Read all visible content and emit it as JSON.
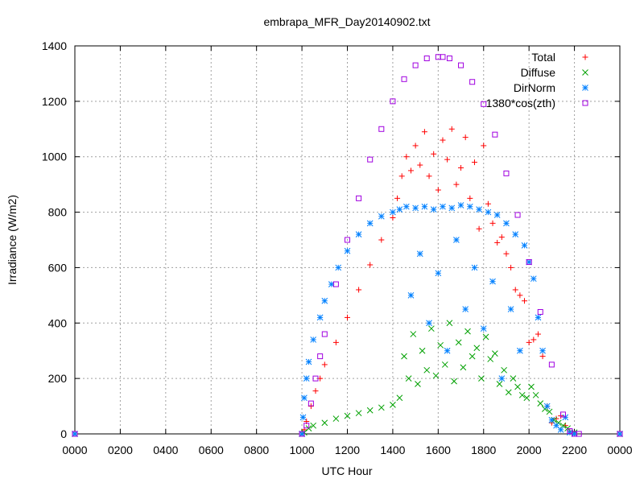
{
  "chart_data": {
    "type": "scatter",
    "title": "embrapa_MFR_Day20140902.txt",
    "xlabel": "UTC Hour",
    "ylabel": "Irradiance (W/m2)",
    "xlim": [
      0,
      2400
    ],
    "ylim": [
      0,
      1400
    ],
    "grid": true,
    "legend_position": "top-right",
    "xticks": [
      "0000",
      "0200",
      "0400",
      "0600",
      "0800",
      "1000",
      "1200",
      "1400",
      "1600",
      "1800",
      "2000",
      "2200",
      "0000"
    ],
    "yticks": [
      "0",
      "200",
      "400",
      "600",
      "800",
      "1000",
      "1200",
      "1400"
    ],
    "series": [
      {
        "name": "Total",
        "marker": "+",
        "color": "#ff0000",
        "x": [
          0,
          1000,
          1010,
          1020,
          1040,
          1060,
          1080,
          1100,
          1150,
          1200,
          1250,
          1300,
          1350,
          1400,
          1420,
          1440,
          1460,
          1480,
          1500,
          1520,
          1540,
          1560,
          1580,
          1600,
          1620,
          1640,
          1660,
          1680,
          1700,
          1720,
          1740,
          1760,
          1780,
          1800,
          1820,
          1840,
          1860,
          1880,
          1900,
          1920,
          1940,
          1960,
          1980,
          2000,
          2020,
          2040,
          2060,
          2080,
          2100,
          2120,
          2140,
          2160,
          2180,
          2200,
          2400
        ],
        "y": [
          0,
          0,
          15,
          45,
          100,
          155,
          200,
          250,
          330,
          420,
          520,
          610,
          700,
          780,
          850,
          930,
          1000,
          950,
          1040,
          970,
          1090,
          930,
          1010,
          880,
          1060,
          990,
          1100,
          900,
          960,
          1070,
          850,
          980,
          740,
          1040,
          830,
          760,
          690,
          710,
          650,
          600,
          520,
          500,
          480,
          330,
          340,
          360,
          280,
          100,
          40,
          55,
          65,
          30,
          10,
          0,
          0
        ]
      },
      {
        "name": "Diffuse",
        "marker": "x",
        "color": "#00a000",
        "x": [
          0,
          1000,
          1010,
          1030,
          1050,
          1100,
          1150,
          1200,
          1250,
          1300,
          1350,
          1400,
          1430,
          1450,
          1470,
          1490,
          1510,
          1530,
          1550,
          1570,
          1590,
          1610,
          1630,
          1650,
          1670,
          1690,
          1710,
          1730,
          1750,
          1770,
          1790,
          1810,
          1830,
          1850,
          1870,
          1890,
          1910,
          1930,
          1950,
          1970,
          1990,
          2010,
          2030,
          2050,
          2070,
          2090,
          2110,
          2130,
          2150,
          2170,
          2200,
          2400
        ],
        "y": [
          0,
          0,
          5,
          20,
          30,
          40,
          55,
          65,
          75,
          85,
          95,
          105,
          130,
          280,
          200,
          360,
          180,
          300,
          230,
          380,
          210,
          320,
          250,
          400,
          190,
          330,
          240,
          370,
          280,
          310,
          200,
          350,
          270,
          290,
          180,
          230,
          150,
          200,
          170,
          140,
          130,
          170,
          140,
          110,
          90,
          80,
          50,
          40,
          30,
          20,
          5,
          0
        ]
      },
      {
        "name": "DirNorm",
        "marker": "*",
        "color": "#0080ff",
        "x": [
          0,
          1000,
          1005,
          1010,
          1020,
          1030,
          1050,
          1080,
          1100,
          1130,
          1160,
          1200,
          1250,
          1300,
          1350,
          1400,
          1430,
          1460,
          1480,
          1500,
          1520,
          1540,
          1560,
          1580,
          1600,
          1620,
          1640,
          1660,
          1680,
          1700,
          1720,
          1740,
          1760,
          1780,
          1800,
          1820,
          1840,
          1860,
          1880,
          1900,
          1920,
          1940,
          1960,
          1980,
          2000,
          2020,
          2040,
          2060,
          2080,
          2100,
          2120,
          2140,
          2160,
          2180,
          2200,
          2400
        ],
        "y": [
          0,
          0,
          60,
          130,
          200,
          260,
          340,
          420,
          480,
          540,
          600,
          660,
          720,
          760,
          785,
          800,
          810,
          820,
          500,
          815,
          650,
          820,
          400,
          810,
          580,
          820,
          300,
          815,
          700,
          825,
          450,
          820,
          600,
          810,
          380,
          800,
          550,
          790,
          200,
          760,
          450,
          720,
          300,
          680,
          620,
          560,
          420,
          300,
          100,
          50,
          30,
          15,
          60,
          5,
          0,
          0
        ]
      },
      {
        "name": "1380*cos(zth)",
        "marker": "square",
        "color": "#a000e0",
        "x": [
          0,
          1000,
          1020,
          1040,
          1060,
          1080,
          1100,
          1150,
          1200,
          1250,
          1300,
          1350,
          1400,
          1450,
          1500,
          1550,
          1600,
          1620,
          1650,
          1700,
          1750,
          1800,
          1850,
          1900,
          1950,
          2000,
          2050,
          2100,
          2150,
          2180,
          2200,
          2220,
          2400
        ],
        "y": [
          0,
          0,
          30,
          110,
          200,
          280,
          360,
          540,
          700,
          850,
          990,
          1100,
          1200,
          1280,
          1330,
          1355,
          1360,
          1360,
          1355,
          1330,
          1270,
          1190,
          1080,
          940,
          790,
          620,
          440,
          250,
          70,
          10,
          0,
          0,
          0
        ]
      }
    ]
  }
}
